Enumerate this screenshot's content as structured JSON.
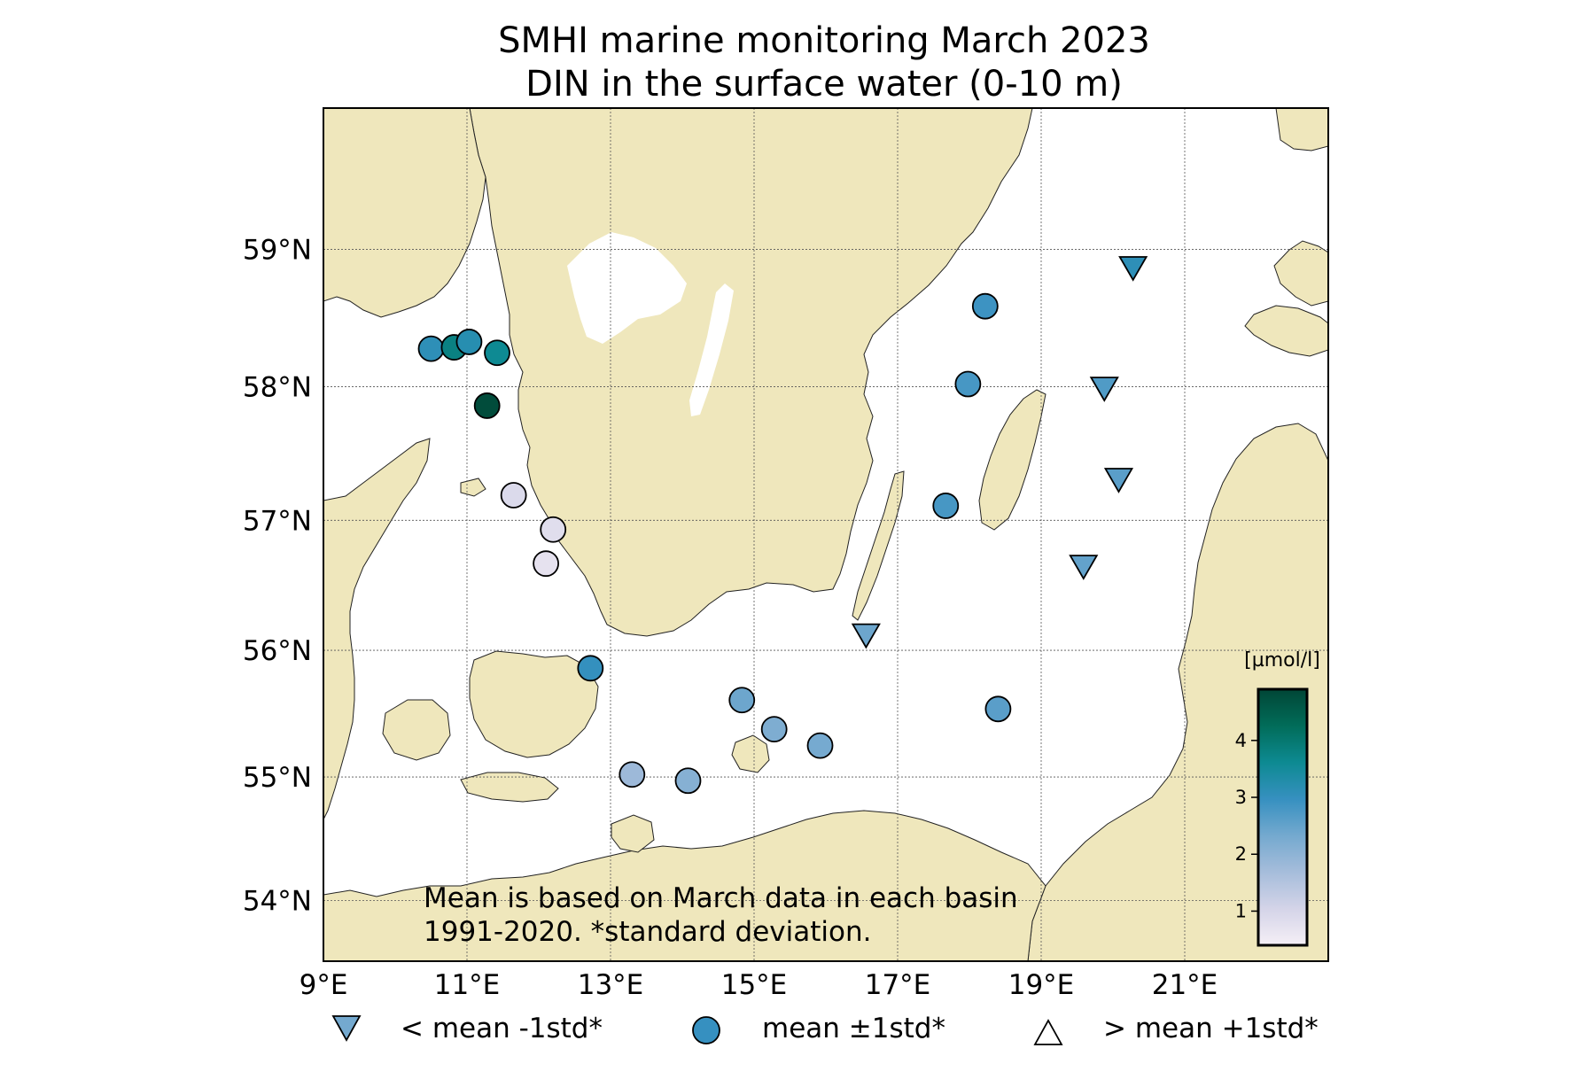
{
  "title": {
    "line1": "SMHI marine monitoring March 2023",
    "line2": "DIN in the surface water (0-10 m)"
  },
  "colors": {
    "land": "#efe7bc",
    "water": "#ffffff",
    "grid": "#555555",
    "colormap": [
      "#f5eff6",
      "#d4d4e8",
      "#a6bddb",
      "#74a9cf",
      "#3690c0",
      "#0d8a92",
      "#016c59",
      "#014636"
    ]
  },
  "map": {
    "lon_range": [
      9,
      23
    ],
    "lat_range": [
      53.5,
      60
    ],
    "lon_ticks": [
      9,
      11,
      13,
      15,
      17,
      19,
      21
    ],
    "lat_ticks": [
      54,
      55,
      56,
      57,
      58,
      59
    ],
    "lon_labels": [
      "9°E",
      "11°E",
      "13°E",
      "15°E",
      "17°E",
      "19°E",
      "21°E"
    ],
    "lat_labels": [
      "54°N",
      "55°N",
      "56°N",
      "57°N",
      "58°N",
      "59°N"
    ]
  },
  "note": {
    "line1": "Mean is based on March data in each basin",
    "line2": "1991-2020. *standard deviation."
  },
  "colorbar": {
    "unit": "[µmol/l]",
    "range": [
      0.4,
      4.9
    ],
    "ticks": [
      1,
      2,
      3,
      4
    ],
    "tick_labels": [
      "1",
      "2",
      "3",
      "4"
    ]
  },
  "legend": [
    {
      "symbol": "triangle-down",
      "label": "< mean -1std*",
      "color": "#74a9cf"
    },
    {
      "symbol": "circle",
      "label": "mean ±1std*",
      "color": "#3690c0"
    },
    {
      "symbol": "triangle-up",
      "label": "> mean +1std*",
      "color": "#ffffff"
    }
  ],
  "stations": [
    {
      "lon": 10.5,
      "lat": 58.28,
      "value": 3.1,
      "symbol": "circle"
    },
    {
      "lon": 10.82,
      "lat": 58.29,
      "value": 3.8,
      "symbol": "circle"
    },
    {
      "lon": 11.03,
      "lat": 58.33,
      "value": 3.2,
      "symbol": "circle"
    },
    {
      "lon": 11.42,
      "lat": 58.25,
      "value": 3.6,
      "symbol": "circle"
    },
    {
      "lon": 11.28,
      "lat": 57.86,
      "value": 4.8,
      "symbol": "circle"
    },
    {
      "lon": 11.65,
      "lat": 57.19,
      "value": 0.9,
      "symbol": "circle"
    },
    {
      "lon": 12.2,
      "lat": 56.93,
      "value": 0.8,
      "symbol": "circle"
    },
    {
      "lon": 12.1,
      "lat": 56.67,
      "value": 0.7,
      "symbol": "circle"
    },
    {
      "lon": 12.72,
      "lat": 55.86,
      "value": 3.0,
      "symbol": "circle"
    },
    {
      "lon": 14.83,
      "lat": 55.61,
      "value": 2.4,
      "symbol": "circle"
    },
    {
      "lon": 15.28,
      "lat": 55.38,
      "value": 2.2,
      "symbol": "circle"
    },
    {
      "lon": 15.92,
      "lat": 55.25,
      "value": 2.3,
      "symbol": "circle"
    },
    {
      "lon": 13.3,
      "lat": 55.02,
      "value": 1.8,
      "symbol": "circle"
    },
    {
      "lon": 14.08,
      "lat": 54.97,
      "value": 2.1,
      "symbol": "circle"
    },
    {
      "lon": 18.22,
      "lat": 58.59,
      "value": 2.9,
      "symbol": "circle"
    },
    {
      "lon": 17.98,
      "lat": 58.02,
      "value": 2.8,
      "symbol": "circle"
    },
    {
      "lon": 17.67,
      "lat": 57.11,
      "value": 2.8,
      "symbol": "circle"
    },
    {
      "lon": 18.4,
      "lat": 55.54,
      "value": 2.6,
      "symbol": "circle"
    },
    {
      "lon": 20.28,
      "lat": 58.87,
      "value": 3.1,
      "symbol": "triangle-down"
    },
    {
      "lon": 19.88,
      "lat": 57.99,
      "value": 2.7,
      "symbol": "triangle-down"
    },
    {
      "lon": 20.08,
      "lat": 57.31,
      "value": 2.6,
      "symbol": "triangle-down"
    },
    {
      "lon": 19.59,
      "lat": 56.65,
      "value": 2.5,
      "symbol": "triangle-down"
    },
    {
      "lon": 16.56,
      "lat": 56.12,
      "value": 2.4,
      "symbol": "triangle-down"
    }
  ]
}
